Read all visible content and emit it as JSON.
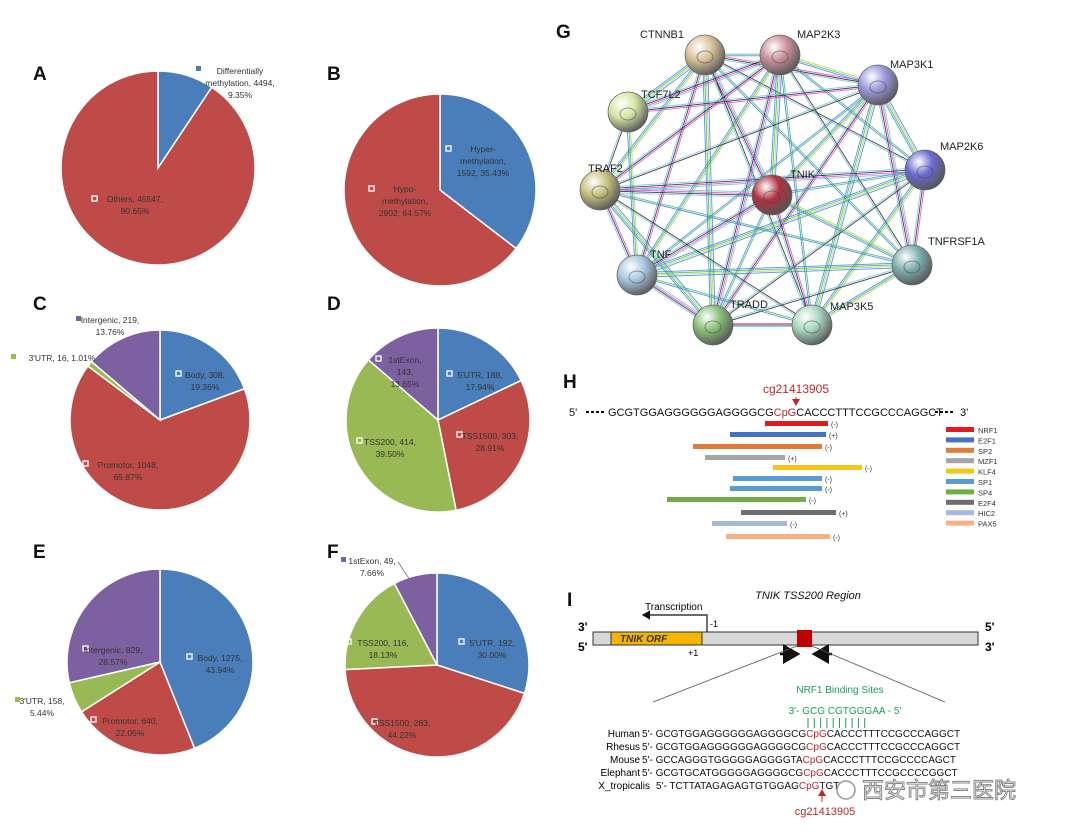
{
  "chart_data": [
    {
      "type": "pie",
      "label": "A",
      "values": [
        9.35,
        90.65
      ],
      "colors": [
        "#4a7ebb",
        "#be4b48"
      ],
      "value_labels": [
        [
          "Differentially",
          "methylation, 4494,",
          "9.35%"
        ],
        [
          "Others, 45547,",
          "90.65%"
        ]
      ]
    },
    {
      "type": "pie",
      "label": "B",
      "values": [
        35.43,
        64.57
      ],
      "colors": [
        "#4a7ebb",
        "#be4b48"
      ],
      "value_labels": [
        [
          "Hyper-",
          "methylation,",
          "1592, 35.43%"
        ],
        [
          "Hypo-",
          "methylation,",
          "2902, 64.57%"
        ]
      ]
    },
    {
      "type": "pie",
      "label": "C",
      "values": [
        19.36,
        65.87,
        1.01,
        13.76
      ],
      "colors": [
        "#4a7ebb",
        "#be4b48",
        "#98b954",
        "#7d60a0"
      ],
      "value_labels": [
        [
          "Body, 308,",
          "19.36%"
        ],
        [
          "Promotor, 1048,",
          "65.87%"
        ],
        [
          "3'UTR, 16, 1.01%"
        ],
        [
          "Intergenic, 219,",
          "13.76%"
        ]
      ]
    },
    {
      "type": "pie",
      "label": "D",
      "values": [
        17.94,
        28.91,
        39.5,
        13.65
      ],
      "colors": [
        "#4a7ebb",
        "#be4b48",
        "#98b954",
        "#7d60a0"
      ],
      "value_labels": [
        [
          "5'UTR, 188,",
          "17.94%"
        ],
        [
          "TSS1500, 303,",
          "28.91%"
        ],
        [
          "TSS200, 414,",
          "39.50%"
        ],
        [
          "1stExon,",
          "143,",
          "13.65%"
        ]
      ]
    },
    {
      "type": "pie",
      "label": "E",
      "values": [
        43.94,
        22.05,
        5.44,
        28.57
      ],
      "colors": [
        "#4a7ebb",
        "#be4b48",
        "#98b954",
        "#7d60a0"
      ],
      "value_labels": [
        [
          "Body, 1275,",
          "43.94%"
        ],
        [
          "Promotor, 640,",
          "22.05%"
        ],
        [
          "3'UTR, 158,",
          "5.44%"
        ],
        [
          "Intergenic, 829,",
          "28.57%"
        ]
      ]
    },
    {
      "type": "pie",
      "label": "F",
      "values": [
        30.0,
        44.22,
        18.13,
        7.66
      ],
      "colors": [
        "#4a7ebb",
        "#be4b48",
        "#98b954",
        "#7d60a0"
      ],
      "value_labels": [
        [
          "5'UTR, 192,",
          "30.00%"
        ],
        [
          "TSS1500, 283,",
          "44.22%"
        ],
        [
          "TSS200, 116,",
          "18.13%"
        ],
        [
          "1stExon, 49,",
          "7.66%"
        ]
      ]
    }
  ],
  "network": {
    "label": "G",
    "nodes": [
      {
        "label": "CTNNB1",
        "color": "#d9c29a"
      },
      {
        "label": "MAP2K3",
        "color": "#c9909a"
      },
      {
        "label": "MAP3K1",
        "color": "#9c98dc"
      },
      {
        "label": "TCF7L2",
        "color": "#d6e6a4"
      },
      {
        "label": "MAP2K6",
        "color": "#6a6ad0"
      },
      {
        "label": "TRAF2",
        "color": "#c9c080"
      },
      {
        "label": "TNIK",
        "color": "#b03040"
      },
      {
        "label": "TNFRSF1A",
        "color": "#7fb0b0"
      },
      {
        "label": "TNF",
        "color": "#a8c8e0"
      },
      {
        "label": "TRADD",
        "color": "#88c078"
      },
      {
        "label": "MAP3K5",
        "color": "#a8d8c0"
      }
    ]
  },
  "binding": {
    "label": "H",
    "cpg_site": "cg21413905",
    "five": "5'",
    "three": "3'",
    "sequence": {
      "left": "GCGTGGAGGGGGGAGGGGCG",
      "cpg": "CpG",
      "right": "CACCCTTTCCGCCCAGGCT"
    },
    "sites": [
      {
        "strand": "(-)",
        "color": "#e31a1c"
      },
      {
        "strand": "(+)",
        "color": "#4472c4"
      },
      {
        "strand": "(-)",
        "color": "#e07b39"
      },
      {
        "strand": "(+)",
        "color": "#a5a5a5"
      },
      {
        "strand": "(-)",
        "color": "#f5c518"
      },
      {
        "strand": "(-)",
        "color": "#5b9bd5"
      },
      {
        "strand": "(-)",
        "color": "#5b9bd5"
      },
      {
        "strand": "(-)",
        "color": "#70ad47"
      },
      {
        "strand": "(+)",
        "color": "#6e6e6e"
      },
      {
        "strand": "(-)",
        "color": "#a9b6e0"
      },
      {
        "strand": "(-)",
        "color": "#f4b183"
      }
    ],
    "legend": [
      {
        "name": "NRF1",
        "color": "#e31a1c"
      },
      {
        "name": "E2F1",
        "color": "#4472c4"
      },
      {
        "name": "SP2",
        "color": "#e07b39"
      },
      {
        "name": "MZF1",
        "color": "#a5a5a5"
      },
      {
        "name": "KLF4",
        "color": "#f5c518"
      },
      {
        "name": "SP1",
        "color": "#5b9bd5"
      },
      {
        "name": "SP4",
        "color": "#70ad47"
      },
      {
        "name": "E2F4",
        "color": "#6e6e6e"
      },
      {
        "name": "HIC2",
        "color": "#a9b6e0"
      },
      {
        "name": "PAX5",
        "color": "#f4b183"
      }
    ]
  },
  "region": {
    "label": "I",
    "title": "TNIK TSS200 Region",
    "left_top": "3'",
    "left_bottom": "5'",
    "right_top": "5'",
    "right_bottom": "3'",
    "transcription": "Transcription",
    "minus1": "-1",
    "plus1": "+1",
    "orf": "TNIK ORF",
    "nrf1_title": "NRF1 Binding Sites",
    "nrf1_seq": "3'- GCG CGTGGGAA - 5'",
    "species": [
      {
        "name": "Human",
        "prefix": "5'- ",
        "left": "GCGTGGAGGGGGGAGGGGCG",
        "cpg": "CpG",
        "right": "CACCCTTTCCGCCCAGGCT"
      },
      {
        "name": "Rhesus",
        "prefix": "5'- ",
        "left": "GCGTGGAGGGGGGAGGGGCG",
        "cpg": "CpG",
        "right": "CACCCTTTCCGCCCAGGCT"
      },
      {
        "name": "Mouse",
        "prefix": "5'- ",
        "left": "GCCAGGGTGGGGGAGGGGTA",
        "cpg": "CpG",
        "right": "CACCCTTTCCGCCCCAGCT"
      },
      {
        "name": "Elephant",
        "prefix": "5'- ",
        "left": "GCGTGCATGGGGGAGGGGCG",
        "cpg": "CpG",
        "right": "CACCCTTTCCGCCCCGGCT"
      },
      {
        "name": "X_tropicalis",
        "prefix": "5'- ",
        "left": "TCTTATAGAGAGTGTGGAG",
        "cpg": "CpG",
        "right": "TGT"
      }
    ],
    "cpg_site": "cg21413905",
    "watermark": "西安市第三医院"
  }
}
